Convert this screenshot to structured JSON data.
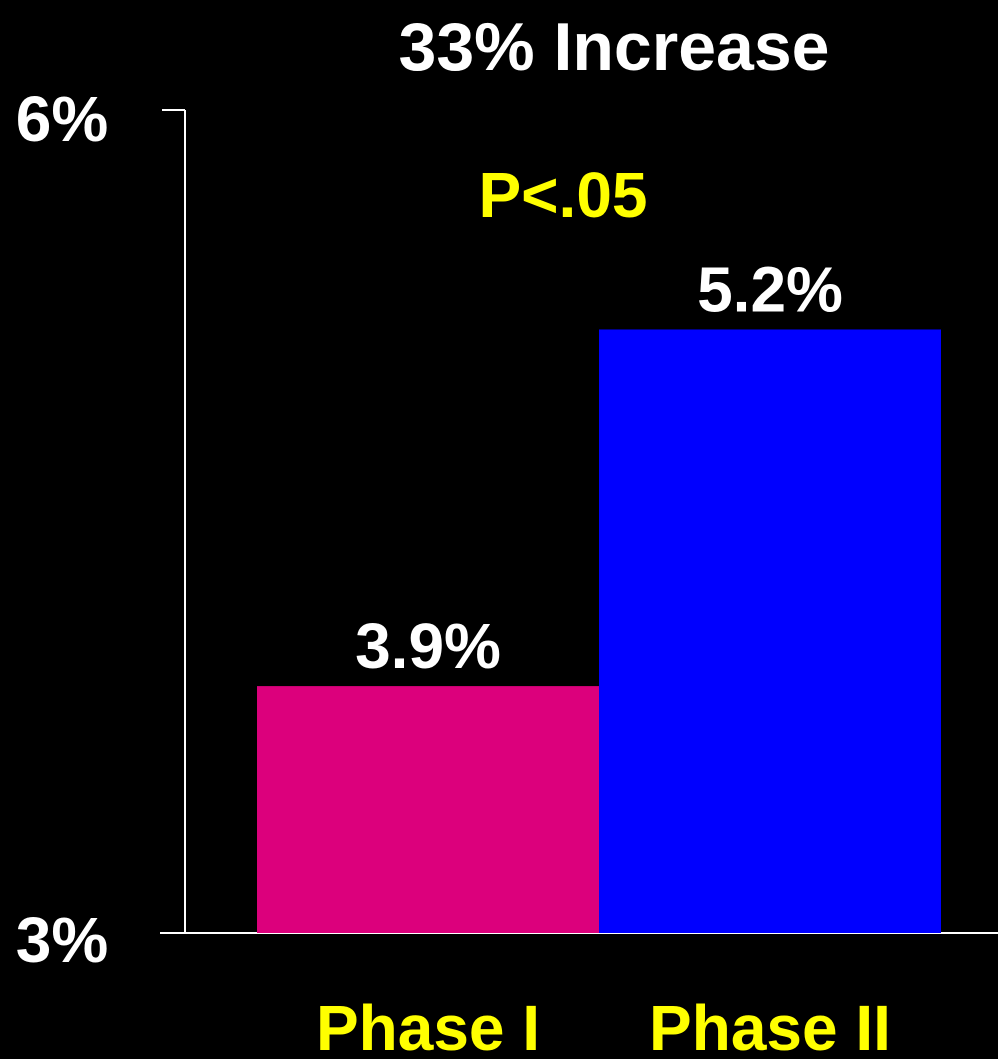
{
  "chart_data": {
    "type": "bar",
    "title": "33% Increase",
    "annotation": "P<.05",
    "categories": [
      "Phase I",
      "Phase II"
    ],
    "values": [
      3.9,
      5.2
    ],
    "value_labels": [
      "3.9%",
      "5.2%"
    ],
    "bar_colors": [
      "#DC007C",
      "#0000FF"
    ],
    "ylim": [
      3,
      6
    ],
    "yticks": [
      {
        "value": 3,
        "label": "3%"
      },
      {
        "value": 6,
        "label": "6%"
      }
    ],
    "xlabel": "",
    "ylabel": "",
    "grid": false,
    "legend": "none"
  },
  "colors": {
    "background": "#000000",
    "text": "#FFFFFF",
    "highlight": "#FFFF00",
    "axis": "#FFFFFF"
  }
}
